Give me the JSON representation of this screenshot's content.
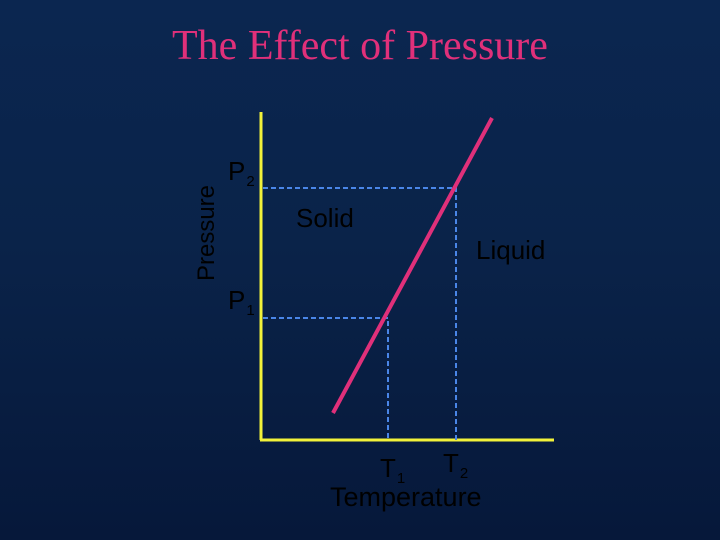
{
  "title": "The Effect of Pressure",
  "y_axis_label": "Pressure",
  "x_axis_label": "Temperature",
  "region_labels": {
    "left": "Solid",
    "right": "Liquid"
  },
  "pressure_marks": [
    {
      "letter": "P",
      "index": "2"
    },
    {
      "letter": "P",
      "index": "1"
    }
  ],
  "temperature_marks": [
    {
      "letter": "T",
      "index": "1"
    },
    {
      "letter": "T",
      "index": "2"
    }
  ],
  "colors": {
    "title": "#e0307a",
    "axes": "#f2f23a",
    "boundary_line": "#e0307a",
    "guide_lines": "#4a86e8",
    "text": "#000000"
  }
}
